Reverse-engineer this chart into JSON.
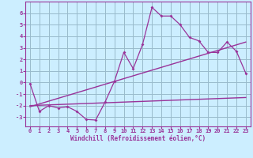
{
  "bg_color": "#cceeff",
  "line_color": "#993399",
  "grid_color": "#99bbcc",
  "xlabel": "Windchill (Refroidissement éolien,°C)",
  "xtick_labels": [
    "0",
    "1",
    "2",
    "3",
    "4",
    "5",
    "6",
    "7",
    "8",
    "9",
    "10",
    "11",
    "12",
    "13",
    "14",
    "15",
    "16",
    "17",
    "18",
    "19",
    "20",
    "21",
    "22",
    "23"
  ],
  "ytick_vals": [
    -3,
    -2,
    -1,
    0,
    1,
    2,
    3,
    4,
    5,
    6
  ],
  "ylim": [
    -3.8,
    7.0
  ],
  "xlim": [
    -0.5,
    23.5
  ],
  "series1_x": [
    0,
    1,
    2,
    3,
    4,
    5,
    6,
    7,
    8,
    9,
    10,
    11,
    12,
    13,
    14,
    15,
    16,
    17,
    18,
    19,
    20,
    21,
    22,
    23
  ],
  "series1_y": [
    -0.1,
    -2.5,
    -2.0,
    -2.2,
    -2.1,
    -2.5,
    -3.2,
    -3.25,
    -1.7,
    0.1,
    2.6,
    1.2,
    3.3,
    6.5,
    5.75,
    5.75,
    5.0,
    3.9,
    3.6,
    2.6,
    2.6,
    3.5,
    2.7,
    0.8
  ],
  "series2_x": [
    0,
    23
  ],
  "series2_y": [
    -2.1,
    3.5
  ],
  "series3_x": [
    0,
    23
  ],
  "series3_y": [
    -2.0,
    -1.3
  ]
}
